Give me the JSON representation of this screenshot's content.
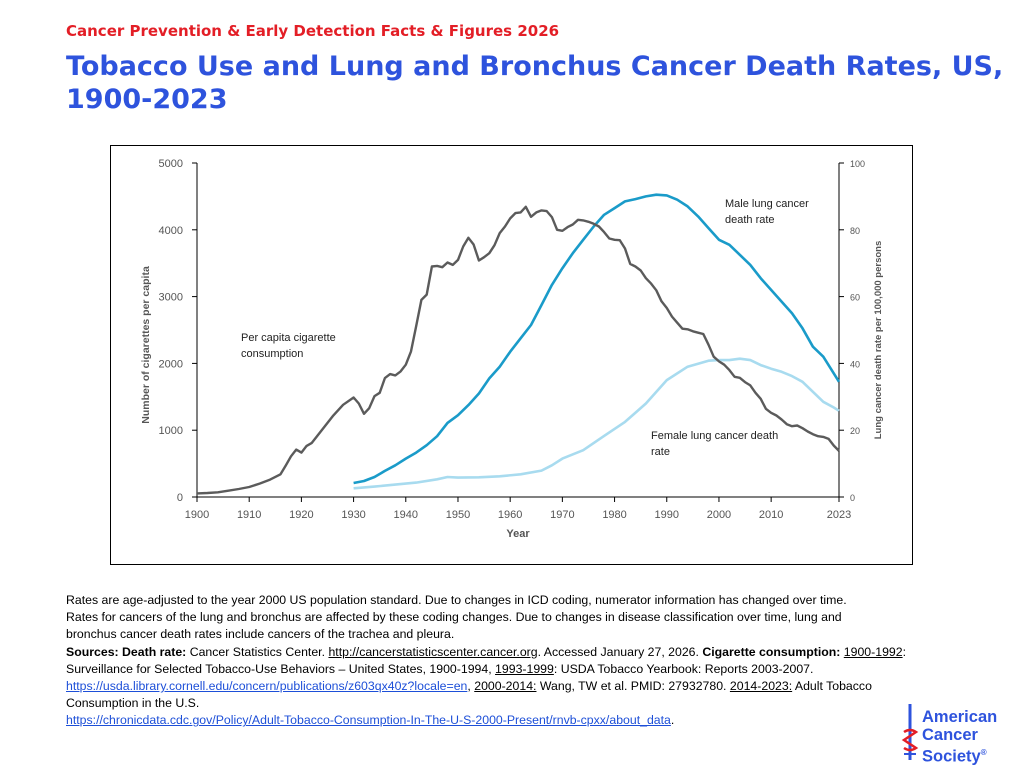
{
  "header": {
    "kicker": "Cancer Prevention & Early Detection Facts & Figures 2026",
    "title": "Tobacco Use and Lung and Bronchus Cancer Death Rates, US, 1900-2023"
  },
  "chart_data": {
    "type": "line",
    "xlabel": "Year",
    "ylabel_left": "Number of cigarettes per capita",
    "ylabel_right": "Lung cancer death rate per 100,000 persons",
    "xlim": [
      1900,
      2023
    ],
    "ylim_left": [
      0,
      5000
    ],
    "ylim_right": [
      0,
      100
    ],
    "x_ticks": [
      "1900",
      "1910",
      "1920",
      "1930",
      "1940",
      "1950",
      "1960",
      "1970",
      "1980",
      "1990",
      "2000",
      "2010",
      "2023"
    ],
    "y_ticks_left": [
      "0",
      "1000",
      "2000",
      "3000",
      "4000",
      "5000"
    ],
    "y_ticks_right": [
      "0",
      "20",
      "40",
      "60",
      "80",
      "100"
    ],
    "grid": false,
    "series": [
      {
        "key": "cigarettes",
        "axis": "left",
        "color": "#5b5b5b",
        "label_lines": [
          "Per capita cigarette",
          "consumption"
        ],
        "x": [
          1900,
          1902,
          1904,
          1906,
          1908,
          1910,
          1912,
          1914,
          1916,
          1917,
          1918,
          1919,
          1920,
          1921,
          1922,
          1924,
          1926,
          1928,
          1930,
          1931,
          1932,
          1933,
          1934,
          1935,
          1936,
          1937,
          1938,
          1939,
          1940,
          1941,
          1942,
          1943,
          1944,
          1945,
          1946,
          1947,
          1948,
          1949,
          1950,
          1951,
          1952,
          1953,
          1954,
          1955,
          1956,
          1957,
          1958,
          1959,
          1960,
          1961,
          1962,
          1963,
          1964,
          1965,
          1966,
          1967,
          1968,
          1969,
          1970,
          1971,
          1972,
          1973,
          1974,
          1975,
          1976,
          1977,
          1978,
          1979,
          1980,
          1981,
          1982,
          1983,
          1984,
          1985,
          1986,
          1987,
          1988,
          1989,
          1990,
          1991,
          1992,
          1993,
          1994,
          1995,
          1996,
          1997,
          1998,
          1999,
          2000,
          2001,
          2002,
          2003,
          2004,
          2005,
          2006,
          2007,
          2008,
          2009,
          2010,
          2011,
          2012,
          2013,
          2014,
          2015,
          2016,
          2017,
          2018,
          2019,
          2020,
          2021,
          2022,
          2023
        ],
        "values": [
          54,
          60,
          70,
          95,
          120,
          150,
          200,
          260,
          340,
          470,
          610,
          710,
          665,
          765,
          810,
          1010,
          1210,
          1380,
          1490,
          1400,
          1245,
          1330,
          1510,
          1560,
          1780,
          1840,
          1820,
          1880,
          1980,
          2180,
          2560,
          2950,
          3030,
          3450,
          3460,
          3440,
          3510,
          3475,
          3550,
          3750,
          3880,
          3780,
          3540,
          3590,
          3650,
          3770,
          3950,
          4050,
          4170,
          4250,
          4260,
          4345,
          4195,
          4260,
          4290,
          4280,
          4190,
          4000,
          3985,
          4040,
          4080,
          4150,
          4140,
          4120,
          4090,
          4050,
          3965,
          3870,
          3850,
          3845,
          3720,
          3490,
          3450,
          3390,
          3275,
          3195,
          3095,
          2930,
          2830,
          2700,
          2610,
          2520,
          2510,
          2480,
          2460,
          2440,
          2280,
          2100,
          2030,
          1980,
          1900,
          1800,
          1785,
          1720,
          1670,
          1560,
          1470,
          1320,
          1260,
          1220,
          1160,
          1090,
          1060,
          1070,
          1030,
          980,
          940,
          910,
          900,
          870,
          770,
          690
        ]
      },
      {
        "key": "male",
        "axis": "right",
        "color": "#1a9bc9",
        "label_lines": [
          "Male lung cancer",
          "death rate"
        ],
        "x": [
          1930,
          1932,
          1934,
          1936,
          1938,
          1940,
          1942,
          1944,
          1946,
          1948,
          1950,
          1952,
          1954,
          1956,
          1958,
          1960,
          1962,
          1964,
          1966,
          1968,
          1970,
          1972,
          1974,
          1976,
          1978,
          1980,
          1982,
          1984,
          1986,
          1988,
          1990,
          1992,
          1994,
          1996,
          1998,
          2000,
          2002,
          2004,
          2006,
          2008,
          2010,
          2012,
          2014,
          2016,
          2018,
          2020,
          2022,
          2023
        ],
        "values": [
          4.2,
          4.8,
          6,
          7.8,
          9.5,
          11.5,
          13.3,
          15.5,
          18.2,
          22.2,
          24.5,
          27.5,
          31,
          35.5,
          39,
          43.5,
          47.5,
          51.5,
          57.5,
          63.5,
          68.5,
          73,
          77,
          81,
          84.5,
          86.5,
          88.5,
          89.2,
          90,
          90.5,
          90.3,
          89,
          87,
          84,
          80.5,
          77,
          75.5,
          72.5,
          69.5,
          65.5,
          62,
          58.5,
          55,
          50.5,
          45,
          42,
          37,
          34.5
        ]
      },
      {
        "key": "female",
        "axis": "right",
        "color": "#a8dbef",
        "label_lines": [
          "Female lung cancer death",
          "rate"
        ],
        "x": [
          1930,
          1934,
          1938,
          1942,
          1946,
          1948,
          1950,
          1954,
          1958,
          1962,
          1966,
          1968,
          1970,
          1974,
          1978,
          1982,
          1986,
          1990,
          1994,
          1998,
          2000,
          2002,
          2004,
          2006,
          2008,
          2010,
          2012,
          2014,
          2016,
          2018,
          2020,
          2022,
          2023
        ],
        "values": [
          2.6,
          3.1,
          3.7,
          4.3,
          5.3,
          6,
          5.8,
          5.9,
          6.2,
          6.8,
          7.9,
          9.5,
          11.5,
          14,
          18.3,
          22.5,
          28,
          35,
          39,
          40.8,
          41,
          41,
          41.4,
          41,
          39.5,
          38.4,
          37.5,
          36.2,
          34.5,
          31.5,
          28.5,
          26.8,
          25.8
        ]
      }
    ]
  },
  "notes": {
    "line1": "Rates are age-adjusted to the year 2000 US population standard. Due to changes in ICD coding, numerator information has changed over time.",
    "line2": "Rates for cancers of the lung and bronchus are affected by these coding changes. Due to changes in disease classification over time, lung and",
    "line3": "bronchus cancer death rates include cancers of the trachea and pleura.",
    "sources_label": "Sources: Death rate:",
    "death_rate_text": " Cancer Statistics Center. ",
    "death_rate_url": "http://cancerstatisticscenter.cancer.org",
    "accessed_text": ". Accessed January 27, 2026. ",
    "cig_label": "Cigarette consumption:",
    "range1": "1900-1992",
    "range1_text": ": Surveillance for Selected Tobacco-Use Behaviors – United States, 1900-1994, ",
    "range2": "1993-1999",
    "range2_text": ": USDA Tobacco Yearbook: Reports 2003-2007.",
    "url2": " https://usda.library.cornell.edu/concern/publications/z603qx40z?locale=en",
    "sep1": ", ",
    "range3": "2000-2014:",
    "range3_text": " Wang, TW et al. PMID: 27932780. ",
    "range4": "2014-2023:",
    "range4_text": " Adult Tobacco Consumption in the U.S.",
    "url3": "https://chronicdata.cdc.gov/Policy/Adult-Tobacco-Consumption-In-The-U-S-2000-Present/rnvb-cpxx/about_data",
    "end": "."
  },
  "logo": {
    "line1": "American",
    "line2": "Cancer",
    "line3": "Society",
    "mark": "®",
    "color": "#2e53dd",
    "accent": "#e31e26"
  }
}
